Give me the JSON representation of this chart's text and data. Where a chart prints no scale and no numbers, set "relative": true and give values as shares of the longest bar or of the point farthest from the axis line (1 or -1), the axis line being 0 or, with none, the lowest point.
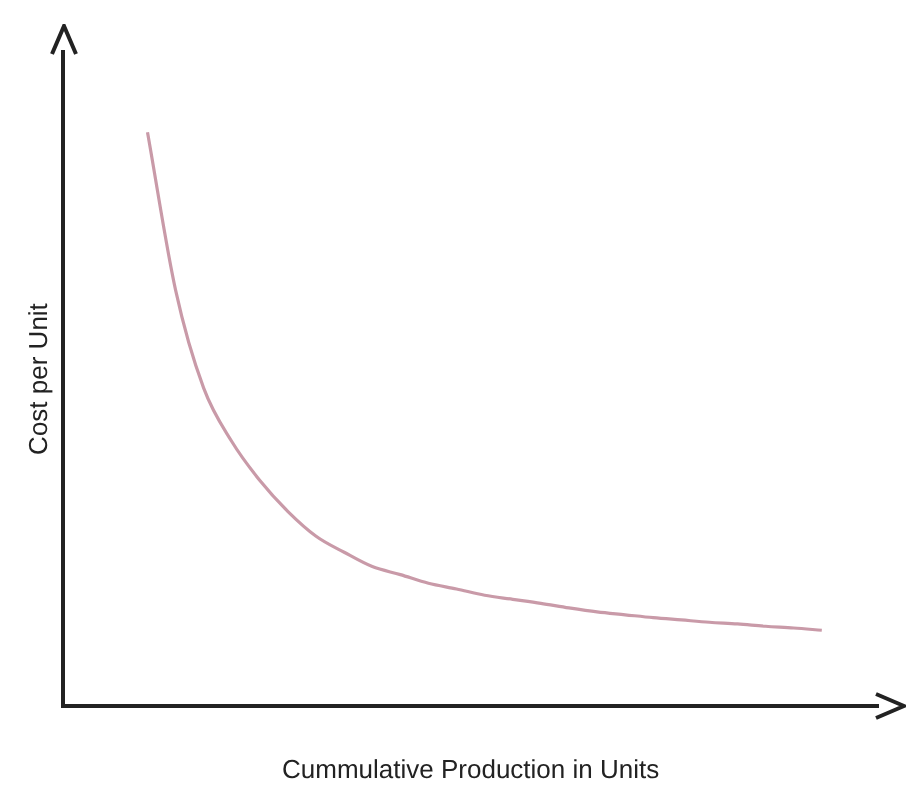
{
  "chart_data": {
    "type": "line",
    "xlabel": "Cummulative Production in Units",
    "ylabel": "Cost per Unit",
    "relative": true,
    "grid": false,
    "legend": false,
    "marker": "none",
    "line_style": "solid",
    "categories": [
      null,
      null,
      null,
      null,
      null,
      null,
      null,
      null,
      null,
      null,
      null,
      null,
      null,
      null,
      null,
      null,
      null,
      null,
      null,
      null,
      null,
      null,
      null,
      null,
      null,
      null,
      null,
      null,
      null,
      null
    ],
    "series": [
      {
        "color": "#c99aa8",
        "values": [
          null,
          null,
          null,
          1,
          0.725,
          0.554,
          0.461,
          0.393,
          0.339,
          0.296,
          0.268,
          0.243,
          0.229,
          0.214,
          0.204,
          0.193,
          0.186,
          0.179,
          0.171,
          0.164,
          0.159,
          0.154,
          0.15,
          0.146,
          0.143,
          0.139,
          0.136,
          0.132,
          null,
          null
        ]
      }
    ]
  }
}
